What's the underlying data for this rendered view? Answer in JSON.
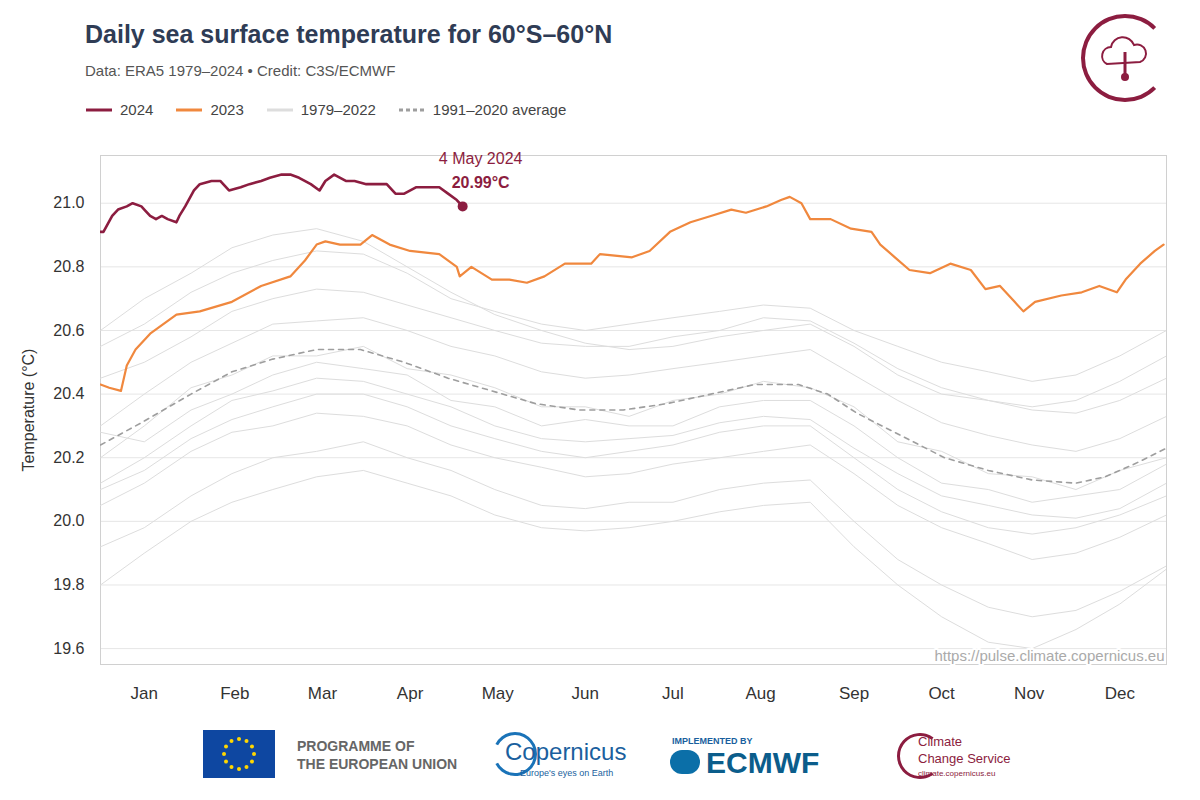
{
  "chart_data": {
    "type": "line",
    "title": "Daily sea surface temperature for 60°S–60°N",
    "subtitle": "Data: ERA5 1979–2024 • Credit: C3S/ECMWF",
    "y_label": "Temperature (°C)",
    "source": "https://pulse.climate.copernicus.eu",
    "legend": "top-left",
    "grid": true,
    "xlim": [
      1,
      366
    ],
    "xticks": [
      {
        "value": 16,
        "label": "Jan"
      },
      {
        "value": 47,
        "label": "Feb"
      },
      {
        "value": 77,
        "label": "Mar"
      },
      {
        "value": 107,
        "label": "Apr"
      },
      {
        "value": 137,
        "label": "May"
      },
      {
        "value": 167,
        "label": "Jun"
      },
      {
        "value": 197,
        "label": "Jul"
      },
      {
        "value": 227,
        "label": "Aug"
      },
      {
        "value": 259,
        "label": "Sep"
      },
      {
        "value": 289,
        "label": "Oct"
      },
      {
        "value": 319,
        "label": "Nov"
      },
      {
        "value": 350,
        "label": "Dec"
      }
    ],
    "ylim": [
      19.55,
      21.15
    ],
    "yticks": [
      19.6,
      19.8,
      {
        "value": 20,
        "label": "20.0"
      },
      20.2,
      20.4,
      20.6,
      20.8,
      {
        "value": 21,
        "label": "21.0"
      }
    ],
    "series": [
      {
        "name": "2024",
        "color": "#8c1d40",
        "line_style": "solid",
        "x": [
          1,
          2,
          5,
          7,
          10,
          12,
          15,
          16,
          18,
          20,
          22,
          24,
          27,
          28,
          30,
          33,
          35,
          39,
          42,
          45,
          49,
          52,
          56,
          59,
          63,
          66,
          69,
          73,
          76,
          78,
          81,
          85,
          88,
          92,
          95,
          99,
          102,
          105,
          109,
          112,
          117,
          120,
          123,
          125
        ],
        "values": [
          20.91,
          20.91,
          20.96,
          20.98,
          20.99,
          21.0,
          20.99,
          20.98,
          20.96,
          20.95,
          20.96,
          20.95,
          20.94,
          20.96,
          20.99,
          21.04,
          21.06,
          21.07,
          21.07,
          21.04,
          21.05,
          21.06,
          21.07,
          21.08,
          21.09,
          21.09,
          21.08,
          21.06,
          21.04,
          21.07,
          21.09,
          21.07,
          21.07,
          21.06,
          21.06,
          21.06,
          21.03,
          21.03,
          21.05,
          21.05,
          21.05,
          21.03,
          21.01,
          20.99
        ]
      },
      {
        "name": "2023",
        "color": "#f0883e",
        "line_style": "solid",
        "x": [
          1,
          4,
          8,
          10,
          13,
          18,
          27,
          35,
          46,
          56,
          66,
          71,
          75,
          78,
          83,
          90,
          94,
          100,
          107,
          117,
          123,
          124,
          128,
          135,
          141,
          147,
          153,
          160,
          169,
          172,
          183,
          189,
          196,
          203,
          210,
          217,
          222,
          229,
          234,
          237,
          241,
          244,
          251,
          258,
          265,
          268,
          273,
          278,
          285,
          292,
          299,
          304,
          309,
          314,
          317,
          321,
          330,
          337,
          343,
          349,
          352,
          357,
          362,
          365
        ],
        "values": [
          20.43,
          20.42,
          20.41,
          20.49,
          20.54,
          20.59,
          20.65,
          20.66,
          20.69,
          20.74,
          20.77,
          20.82,
          20.87,
          20.88,
          20.87,
          20.87,
          20.9,
          20.87,
          20.85,
          20.84,
          20.8,
          20.77,
          20.8,
          20.76,
          20.76,
          20.75,
          20.77,
          20.81,
          20.81,
          20.84,
          20.83,
          20.85,
          20.91,
          20.94,
          20.96,
          20.98,
          20.97,
          20.99,
          21.01,
          21.02,
          21.0,
          20.95,
          20.95,
          20.92,
          20.91,
          20.87,
          20.83,
          20.79,
          20.78,
          20.81,
          20.79,
          20.73,
          20.74,
          20.69,
          20.66,
          20.69,
          20.71,
          20.72,
          20.74,
          20.72,
          20.76,
          20.81,
          20.85,
          20.87
        ]
      },
      {
        "name": "1979–2022",
        "color": "#dddddd",
        "line_style": "solid",
        "x": [
          1,
          16,
          32,
          46,
          60,
          75,
          91,
          106,
          121,
          136,
          152,
          167,
          182,
          197,
          213,
          228,
          244,
          259,
          274,
          289,
          305,
          320,
          335,
          350,
          366
        ],
        "values": [
          [
            19.92,
            19.98,
            20.08,
            20.15,
            20.2,
            20.22,
            20.25,
            20.2,
            20.16,
            20.1,
            20.05,
            20.04,
            20.06,
            20.06,
            20.1,
            20.12,
            20.13,
            20.0,
            19.88,
            19.8,
            19.73,
            19.7,
            19.72,
            19.78,
            19.86
          ],
          [
            20.05,
            20.12,
            20.22,
            20.28,
            20.3,
            20.34,
            20.33,
            20.3,
            20.24,
            20.2,
            20.17,
            20.14,
            20.15,
            20.18,
            20.2,
            20.22,
            20.24,
            20.15,
            20.05,
            19.98,
            19.93,
            19.88,
            19.9,
            19.95,
            20.02
          ],
          [
            20.12,
            20.2,
            20.3,
            20.38,
            20.41,
            20.45,
            20.44,
            20.4,
            20.36,
            20.3,
            20.26,
            20.25,
            20.26,
            20.27,
            20.31,
            20.33,
            20.32,
            20.23,
            20.15,
            20.08,
            20.05,
            20.02,
            20.01,
            20.04,
            20.12
          ],
          [
            20.2,
            20.3,
            20.42,
            20.46,
            20.52,
            20.52,
            20.55,
            20.48,
            20.46,
            20.42,
            20.36,
            20.36,
            20.33,
            20.38,
            20.4,
            20.44,
            20.42,
            20.36,
            20.25,
            20.22,
            20.15,
            20.14,
            20.1,
            20.16,
            20.2
          ],
          [
            20.28,
            20.25,
            20.35,
            20.4,
            20.46,
            20.5,
            20.48,
            20.46,
            20.38,
            20.36,
            20.3,
            20.32,
            20.3,
            20.3,
            20.36,
            20.38,
            20.38,
            20.3,
            20.2,
            20.12,
            20.1,
            20.06,
            20.08,
            20.1,
            20.18
          ],
          [
            20.3,
            20.4,
            20.5,
            20.56,
            20.62,
            20.63,
            20.64,
            20.6,
            20.55,
            20.52,
            20.47,
            20.45,
            20.46,
            20.48,
            20.5,
            20.52,
            20.54,
            20.46,
            20.38,
            20.31,
            20.27,
            20.24,
            20.22,
            20.26,
            20.33
          ],
          [
            20.45,
            20.5,
            20.58,
            20.66,
            20.7,
            20.73,
            20.72,
            20.68,
            20.64,
            20.6,
            20.56,
            20.55,
            20.55,
            20.58,
            20.6,
            20.64,
            20.63,
            20.56,
            20.48,
            20.42,
            20.38,
            20.35,
            20.34,
            20.38,
            20.45
          ],
          [
            20.6,
            20.7,
            20.78,
            20.86,
            20.9,
            20.92,
            20.88,
            20.8,
            20.72,
            20.65,
            20.6,
            20.56,
            20.54,
            20.55,
            20.58,
            20.6,
            20.62,
            20.55,
            20.46,
            20.4,
            20.38,
            20.36,
            20.38,
            20.44,
            20.52
          ],
          [
            20.55,
            20.62,
            20.72,
            20.78,
            20.82,
            20.85,
            20.84,
            20.78,
            20.7,
            20.66,
            20.62,
            20.6,
            20.62,
            20.64,
            20.66,
            20.68,
            20.67,
            20.6,
            20.55,
            20.5,
            20.47,
            20.44,
            20.46,
            20.52,
            20.6
          ],
          [
            19.8,
            19.9,
            20.0,
            20.06,
            20.1,
            20.14,
            20.16,
            20.12,
            20.08,
            20.02,
            19.98,
            19.97,
            19.98,
            20.0,
            20.03,
            20.05,
            20.06,
            19.92,
            19.8,
            19.7,
            19.62,
            19.6,
            19.66,
            19.74,
            19.85
          ],
          [
            20.1,
            20.16,
            20.26,
            20.32,
            20.36,
            20.4,
            20.4,
            20.36,
            20.3,
            20.26,
            20.22,
            20.2,
            20.22,
            20.24,
            20.28,
            20.3,
            20.3,
            20.2,
            20.1,
            20.03,
            19.98,
            19.96,
            19.98,
            20.02,
            20.08
          ]
        ]
      },
      {
        "name": "1991–2020 average",
        "color": "#9e9e9e",
        "line_style": "dashed",
        "x": [
          1,
          15,
          32,
          46,
          60,
          75,
          90,
          105,
          120,
          135,
          150,
          165,
          180,
          195,
          210,
          225,
          240,
          250,
          260,
          275,
          290,
          305,
          320,
          335,
          345,
          355,
          366
        ],
        "values": [
          20.24,
          20.31,
          20.4,
          20.47,
          20.51,
          20.54,
          20.54,
          20.5,
          20.45,
          20.41,
          20.37,
          20.35,
          20.35,
          20.37,
          20.4,
          20.43,
          20.43,
          20.4,
          20.34,
          20.27,
          20.2,
          20.16,
          20.13,
          20.12,
          20.14,
          20.18,
          20.23
        ]
      }
    ],
    "annotations": [
      {
        "x": 125,
        "y": 20.99,
        "text": "4 May 2024",
        "value_label": "20.99°C",
        "color": "#8c1d40"
      }
    ]
  },
  "footer": {
    "eu": [
      "PROGRAMME OF",
      "THE EUROPEAN UNION"
    ],
    "copernicus": [
      "Copernicus",
      "Europe's eyes on Earth"
    ],
    "ecmwf": [
      "IMPLEMENTED BY",
      "ECMWF"
    ],
    "c3s": [
      "Climate",
      "Change Service",
      "climate.copernicus.eu"
    ]
  }
}
